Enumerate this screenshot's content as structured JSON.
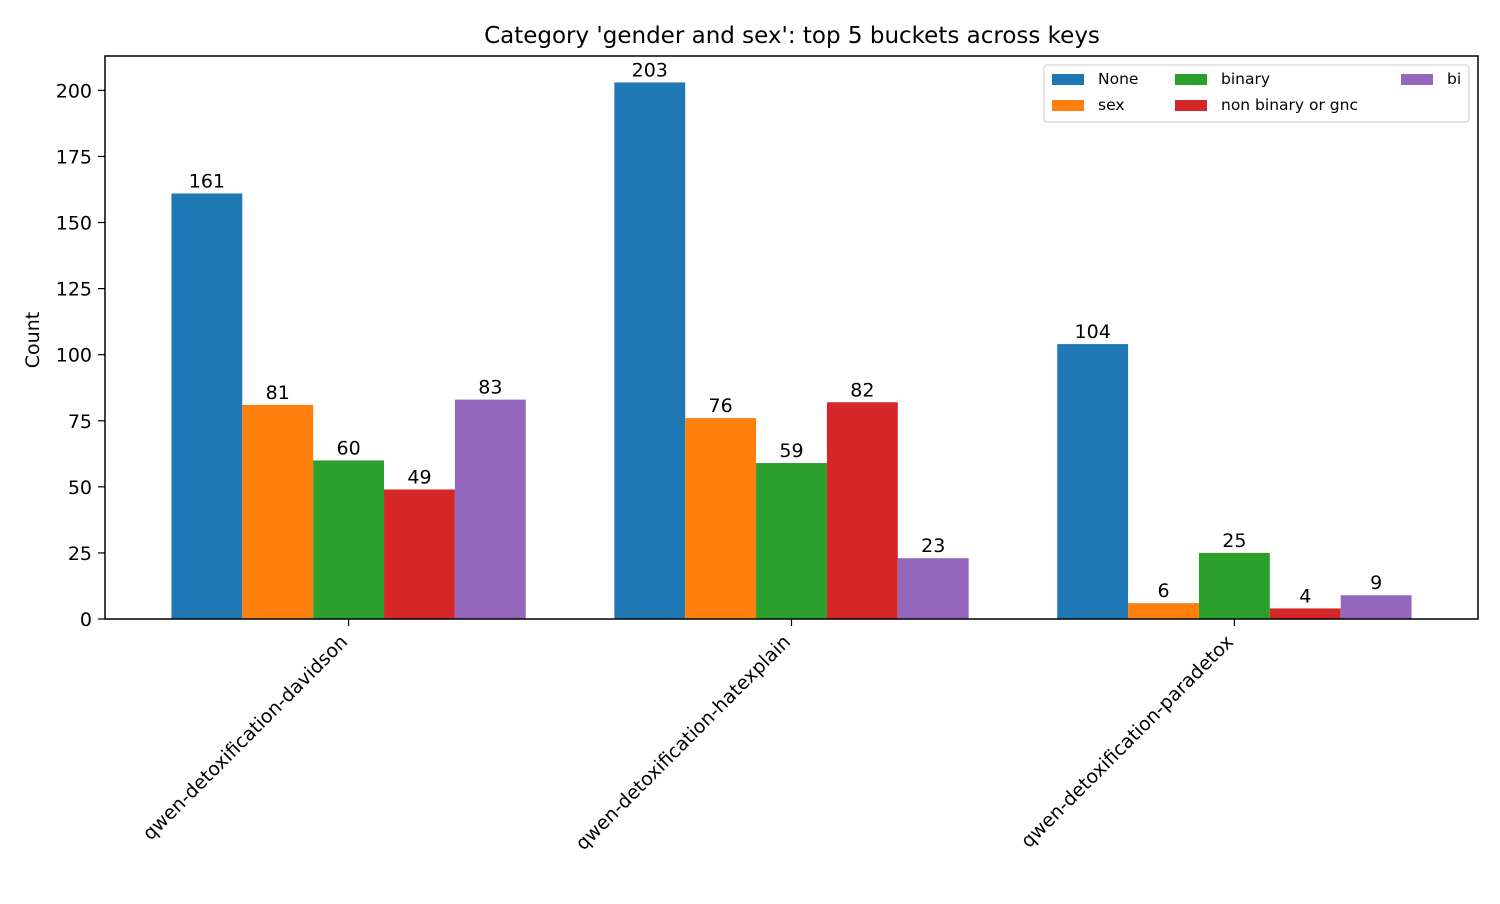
{
  "chart_data": {
    "type": "bar",
    "title": "Category 'gender and sex': top 5 buckets across keys",
    "xlabel": "",
    "ylabel": "Count",
    "categories": [
      "qwen-detoxification-davidson",
      "qwen-detoxification-hatexplain",
      "qwen-detoxification-paradetox"
    ],
    "series": [
      {
        "name": "None",
        "color": "#1f77b4",
        "values": [
          161,
          203,
          104
        ]
      },
      {
        "name": "sex",
        "color": "#ff7f0e",
        "values": [
          81,
          76,
          6
        ]
      },
      {
        "name": "binary",
        "color": "#2ca02c",
        "values": [
          60,
          59,
          25
        ]
      },
      {
        "name": "non binary or gnc",
        "color": "#d62728",
        "values": [
          49,
          82,
          4
        ]
      },
      {
        "name": "bi",
        "color": "#9467bd",
        "values": [
          83,
          23,
          9
        ]
      }
    ],
    "ylim": [
      0,
      213
    ],
    "yticks": [
      0,
      25,
      50,
      75,
      100,
      125,
      150,
      175,
      200
    ],
    "grid": false,
    "legend_position": "top-right",
    "data_labels": true
  }
}
